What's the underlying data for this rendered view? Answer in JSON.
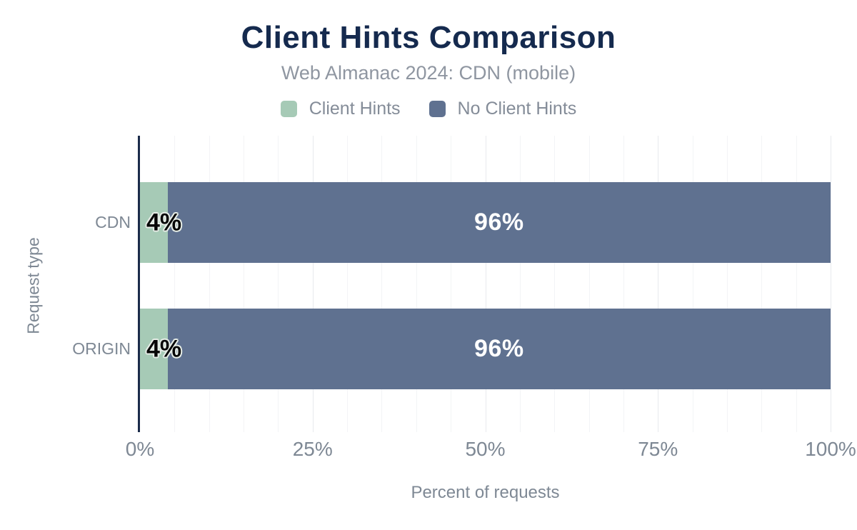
{
  "chart_data": {
    "type": "bar",
    "orientation": "horizontal",
    "stacked": true,
    "title": "Client Hints Comparison",
    "subtitle": "Web Almanac 2024: CDN (mobile)",
    "categories": [
      "CDN",
      "ORIGIN"
    ],
    "series": [
      {
        "name": "Client Hints",
        "color": "#a6cab6",
        "values": [
          4,
          4
        ]
      },
      {
        "name": "No Client Hints",
        "color": "#5f7190",
        "values": [
          96,
          96
        ]
      }
    ],
    "value_labels": [
      [
        "4%",
        "96%"
      ],
      [
        "4%",
        "96%"
      ]
    ],
    "xlabel": "Percent of requests",
    "ylabel": "Request type",
    "xlim": [
      0,
      100
    ],
    "xticks": [
      "0%",
      "25%",
      "50%",
      "75%",
      "100%"
    ],
    "grid": {
      "vertical_minor_every": 5,
      "vertical_major_every": 25
    },
    "legend_position": "top",
    "axis_color": "#1b2b4a",
    "title_color": "#152a4e",
    "label_text_color": "#7e8894"
  }
}
